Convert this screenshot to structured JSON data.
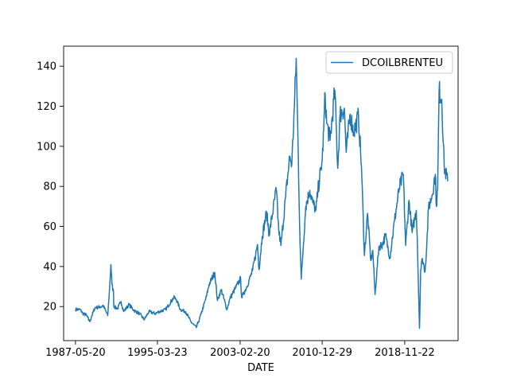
{
  "chart_data": {
    "type": "line",
    "xlabel": "DATE",
    "ylabel": "",
    "title": "",
    "x_tick_labels": [
      "1987-05-20",
      "1995-03-23",
      "2003-02-20",
      "2010-12-29",
      "2018-11-22"
    ],
    "y_ticks": [
      20,
      40,
      60,
      80,
      100,
      120,
      140
    ],
    "xlim": [
      "1986-04-01",
      "2023-12-31"
    ],
    "ylim": [
      3,
      150
    ],
    "grid": false,
    "legend_position": "top-right",
    "series": [
      {
        "name": "DCOILBRENTEU",
        "color": "#1f77b4",
        "points": [
          [
            "1987-05-20",
            18.6
          ],
          [
            "1987-11-01",
            18.5
          ],
          [
            "1988-02-01",
            16.5
          ],
          [
            "1988-06-01",
            15.8
          ],
          [
            "1988-10-01",
            12.5
          ],
          [
            "1988-12-15",
            15.5
          ],
          [
            "1989-04-01",
            19.5
          ],
          [
            "1989-10-01",
            19.8
          ],
          [
            "1990-01-15",
            20.5
          ],
          [
            "1990-06-20",
            15.5
          ],
          [
            "1990-08-15",
            27.0
          ],
          [
            "1990-10-10",
            41.0
          ],
          [
            "1990-11-15",
            31.0
          ],
          [
            "1991-01-10",
            27.0
          ],
          [
            "1991-01-18",
            20.0
          ],
          [
            "1991-06-01",
            19.0
          ],
          [
            "1991-10-01",
            22.5
          ],
          [
            "1992-01-01",
            17.5
          ],
          [
            "1992-07-01",
            21.0
          ],
          [
            "1993-01-01",
            18.0
          ],
          [
            "1993-07-01",
            16.5
          ],
          [
            "1993-12-20",
            13.5
          ],
          [
            "1994-06-01",
            17.5
          ],
          [
            "1995-01-01",
            16.5
          ],
          [
            "1995-06-01",
            17.5
          ],
          [
            "1996-01-01",
            18.5
          ],
          [
            "1996-10-15",
            24.5
          ],
          [
            "1997-01-15",
            23.5
          ],
          [
            "1997-06-01",
            18.5
          ],
          [
            "1997-12-01",
            17.5
          ],
          [
            "1998-06-01",
            12.5
          ],
          [
            "1998-12-10",
            9.5
          ],
          [
            "1999-03-01",
            12.5
          ],
          [
            "1999-06-01",
            16.5
          ],
          [
            "1999-12-01",
            25.0
          ],
          [
            "2000-03-01",
            31.0
          ],
          [
            "2000-09-15",
            37.0
          ],
          [
            "2000-12-20",
            23.0
          ],
          [
            "2001-05-01",
            28.5
          ],
          [
            "2001-11-15",
            18.5
          ],
          [
            "2002-03-01",
            24.0
          ],
          [
            "2002-09-01",
            29.0
          ],
          [
            "2003-03-10",
            34.0
          ],
          [
            "2003-04-15",
            24.5
          ],
          [
            "2003-10-01",
            29.5
          ],
          [
            "2004-05-01",
            38.0
          ],
          [
            "2004-10-20",
            51.0
          ],
          [
            "2004-12-10",
            38.5
          ],
          [
            "2005-04-01",
            55.0
          ],
          [
            "2005-09-01",
            67.0
          ],
          [
            "2005-12-01",
            56.0
          ],
          [
            "2006-08-07",
            78.5
          ],
          [
            "2006-11-01",
            58.0
          ],
          [
            "2007-01-18",
            50.5
          ],
          [
            "2007-07-01",
            75.0
          ],
          [
            "2007-11-20",
            95.0
          ],
          [
            "2008-02-01",
            91.0
          ],
          [
            "2008-05-01",
            120.0
          ],
          [
            "2008-07-03",
            143.9
          ],
          [
            "2008-09-15",
            95.0
          ],
          [
            "2008-11-01",
            60.0
          ],
          [
            "2008-12-26",
            33.7
          ],
          [
            "2009-02-01",
            42.0
          ],
          [
            "2009-06-01",
            70.0
          ],
          [
            "2009-10-20",
            78.0
          ],
          [
            "2010-02-01",
            72.0
          ],
          [
            "2010-05-25",
            68.0
          ],
          [
            "2010-08-01",
            78.0
          ],
          [
            "2010-12-29",
            93.0
          ],
          [
            "2011-02-20",
            108.0
          ],
          [
            "2011-04-10",
            126.5
          ],
          [
            "2011-06-01",
            112.0
          ],
          [
            "2011-10-01",
            103.0
          ],
          [
            "2012-03-15",
            128.0
          ],
          [
            "2012-06-25",
            89.0
          ],
          [
            "2012-09-15",
            116.0
          ],
          [
            "2013-02-08",
            119.0
          ],
          [
            "2013-04-17",
            97.0
          ],
          [
            "2013-09-01",
            116.0
          ],
          [
            "2014-01-01",
            107.0
          ],
          [
            "2014-06-20",
            115.0
          ],
          [
            "2014-10-01",
            90.0
          ],
          [
            "2015-01-13",
            45.5
          ],
          [
            "2015-05-01",
            66.5
          ],
          [
            "2015-08-24",
            43.0
          ],
          [
            "2015-11-01",
            48.0
          ],
          [
            "2016-01-20",
            26.0
          ],
          [
            "2016-06-01",
            50.0
          ],
          [
            "2016-10-01",
            51.0
          ],
          [
            "2017-01-15",
            55.5
          ],
          [
            "2017-06-21",
            44.5
          ],
          [
            "2017-12-01",
            63.0
          ],
          [
            "2018-05-15",
            79.0
          ],
          [
            "2018-10-03",
            86.0
          ],
          [
            "2018-12-24",
            50.5
          ],
          [
            "2019-04-20",
            73.0
          ],
          [
            "2019-08-07",
            57.0
          ],
          [
            "2019-12-31",
            68.0
          ],
          [
            "2020-02-01",
            55.0
          ],
          [
            "2020-03-15",
            30.0
          ],
          [
            "2020-04-21",
            9.1
          ],
          [
            "2020-06-01",
            38.0
          ],
          [
            "2020-08-01",
            44.0
          ],
          [
            "2020-11-01",
            37.5
          ],
          [
            "2021-01-01",
            51.0
          ],
          [
            "2021-03-01",
            69.0
          ],
          [
            "2021-07-01",
            75.5
          ],
          [
            "2021-10-25",
            86.0
          ],
          [
            "2021-12-01",
            70.0
          ],
          [
            "2022-01-15",
            79.0
          ],
          [
            "2022-03-08",
            128.0
          ],
          [
            "2022-06-08",
            123.5
          ],
          [
            "2022-09-01",
            90.0
          ],
          [
            "2022-12-31",
            82.5
          ]
        ]
      }
    ]
  }
}
